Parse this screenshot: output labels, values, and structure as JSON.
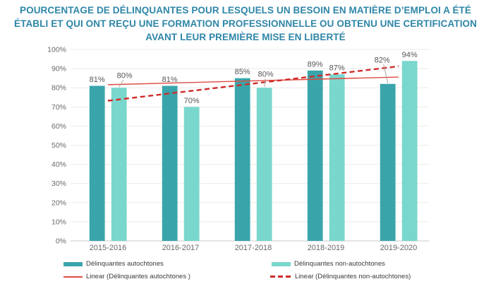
{
  "title": {
    "lines": [
      "POURCENTAGE DE DÉLINQUANTES POUR LESQUELS UN BESOIN EN MATIÈRE D’EMPLOI A ÉTÉ",
      "ÉTABLI ET QUI ONT REÇU UNE FORMATION PROFESSIONNELLE OU OBTENU UNE CERTIFICATION",
      "AVANT LEUR PREMIÈRE MISE EN LIBERTÉ"
    ],
    "color": "#2e86a8"
  },
  "chart_data": {
    "type": "bar",
    "categories": [
      "2015-2016",
      "2016-2017",
      "2017-2018",
      "2018-2019",
      "2019-2020"
    ],
    "series": [
      {
        "name": "Délinquantes autochtones",
        "color": "#39a5aa",
        "values": [
          81,
          81,
          85,
          89,
          82
        ]
      },
      {
        "name": "Délinquantes non-autochtones",
        "color": "#7ad7cd",
        "values": [
          80,
          70,
          80,
          87,
          94
        ]
      }
    ],
    "trendlines": [
      {
        "name": "Linear (Délinquantes autochtones )",
        "color": "#dc4b41",
        "style": "solid",
        "start_value": 81.6,
        "end_value": 85.6
      },
      {
        "name": "Linear (Délinquantes non-autochtones)",
        "color": "#d02b28",
        "style": "dashed",
        "start_value": 73.2,
        "end_value": 91.2
      }
    ],
    "ylim": [
      0,
      100
    ],
    "ytick_step": 10,
    "tick_suffix": "%",
    "data_label_suffix": "%",
    "grid": true,
    "legend_position": "bottom",
    "data_labels": true,
    "label_overrides": [
      {
        "series": 1,
        "index": 0,
        "raise": 8,
        "label_dx": 8,
        "leader": true
      },
      {
        "series": 1,
        "index": 2,
        "raise": 10,
        "label_dx": 2,
        "leader": true
      },
      {
        "series": 0,
        "index": 4,
        "raise": 25,
        "label_dx": -8,
        "leader": true
      }
    ]
  },
  "colors": {
    "grid": "#ebebeb",
    "axis": "#c8c8c8",
    "tick_text": "#696969",
    "data_label_text": "#565656",
    "leader": "#a6a6a6",
    "background": "#ffffff"
  }
}
